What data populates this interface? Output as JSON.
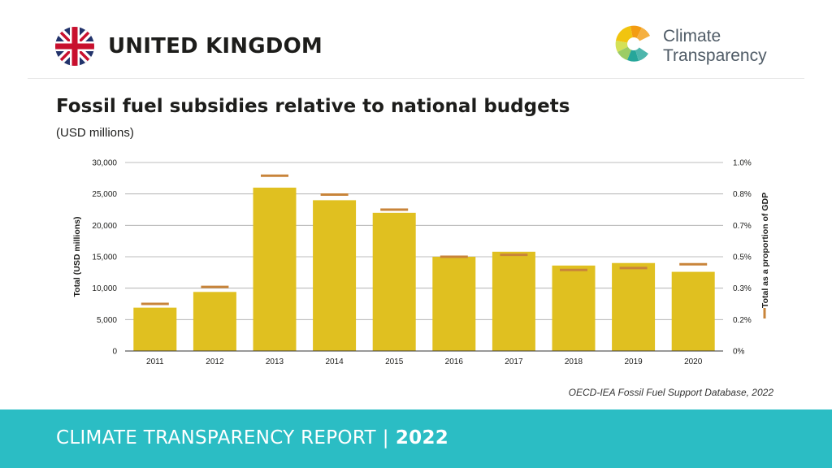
{
  "header": {
    "country": "UNITED KINGDOM",
    "flag_icon": "union-jack-flag-icon",
    "logo_icon": "climate-transparency-logo-icon",
    "logo_line1": "Climate",
    "logo_line2": "Transparency"
  },
  "chart_data": {
    "type": "bar",
    "title": "Fossil fuel subsidies relative to national budgets",
    "subtitle": "(USD millions)",
    "categories": [
      "2011",
      "2012",
      "2013",
      "2014",
      "2015",
      "2016",
      "2017",
      "2018",
      "2019",
      "2020"
    ],
    "series": [
      {
        "values": [
          6900,
          9400,
          26000,
          24000,
          22000,
          15000,
          15800,
          13600,
          14000,
          12600
        ]
      },
      {
        "values": [
          0.25,
          0.34,
          0.93,
          0.83,
          0.75,
          0.5,
          0.51,
          0.43,
          0.44,
          0.46
        ]
      }
    ],
    "ylabel": "Total (USD millions)",
    "y2label": "Total as a proportion of GDP",
    "ylim": [
      0,
      30000
    ],
    "y2lim": [
      0,
      1.0
    ],
    "yticks": [
      "0",
      "5,000",
      "10,000",
      "15,000",
      "20,000",
      "25,000",
      "30,000"
    ],
    "y2ticks": [
      "0%",
      "0.2%",
      "0.3%",
      "0.5%",
      "0.7%",
      "0.8%",
      "1.0%"
    ],
    "grid": true,
    "colors": {
      "bar": "#e0c020",
      "marker": "#c8843a",
      "grid": "#a8a8a8",
      "axis": "#333333"
    }
  },
  "source": "OECD-IEA Fossil Fuel Support Database, 2022",
  "footer": {
    "label": "CLIMATE TRANSPARENCY REPORT",
    "separator": "|",
    "year": "2022"
  }
}
